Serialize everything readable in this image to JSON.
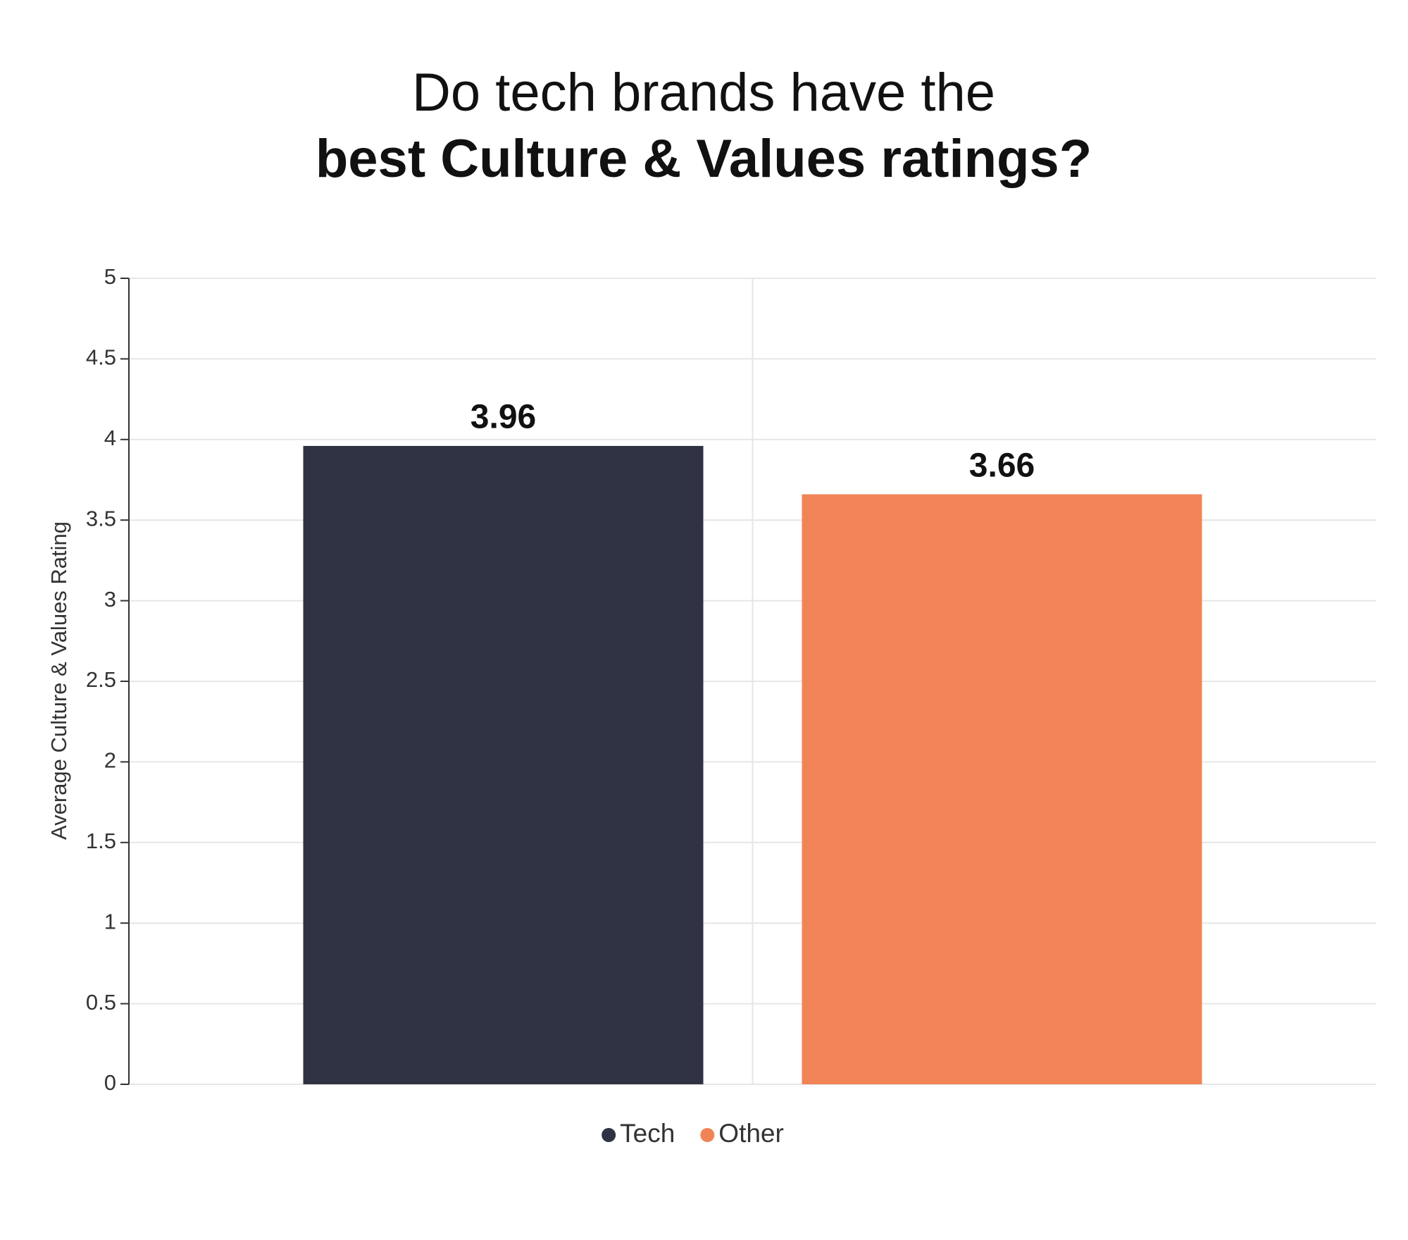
{
  "chart_data": {
    "type": "bar",
    "title": [
      "Do tech brands have the",
      "best Culture & Values ratings?"
    ],
    "ylabel": "Average Culture & Values Rating",
    "categories": [
      null
    ],
    "series": [
      {
        "name": "Tech",
        "color": "#2f3242",
        "values": [
          3.96
        ]
      },
      {
        "name": "Other",
        "color": "#f08456",
        "values": [
          3.66
        ]
      }
    ],
    "ylim": [
      0,
      5
    ],
    "yticks": [
      0,
      0.5,
      1,
      1.5,
      2,
      2.5,
      3,
      3.5,
      4,
      4.5,
      5
    ],
    "grid": true
  }
}
